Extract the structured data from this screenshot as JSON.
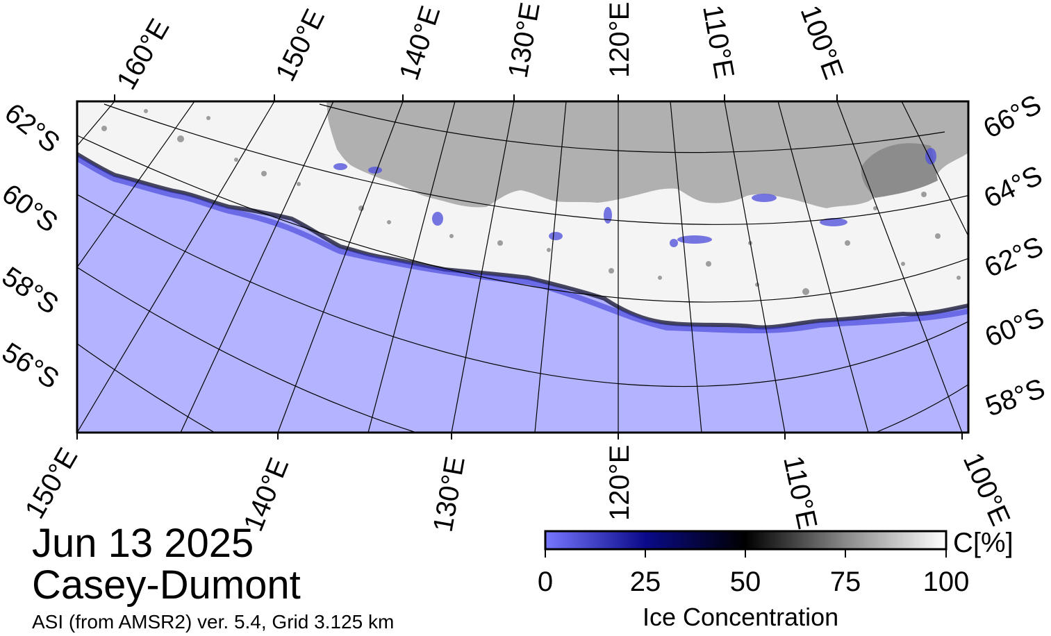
{
  "date": "Jun 13 2025",
  "region": "Casey-Dumont",
  "product": "ASI (from AMSR2) ver. 5.4,  Grid 3.125 km",
  "colorbar": {
    "title": "Ice Concentration",
    "unit": "C[%]",
    "ticks": [
      "0",
      "25",
      "50",
      "75",
      "100"
    ]
  },
  "map_labels": {
    "top_longitudes": [
      "160°E",
      "150°E",
      "140°E",
      "130°E",
      "120°E",
      "110°E",
      "100°E"
    ],
    "bottom_longitudes": [
      "150°E",
      "140°E",
      "130°E",
      "120°E",
      "110°E",
      "100°E"
    ],
    "left_latitudes": [
      "62°S",
      "60°S",
      "58°S",
      "56°S"
    ],
    "right_latitudes": [
      "66°S",
      "64°S",
      "62°S",
      "60°S",
      "58°S"
    ]
  },
  "colors": {
    "ocean": "#b3b3ff",
    "land": "#b0b0b0",
    "ice_high": "#ffffff",
    "ice_low": "#6e6ef5",
    "ice_mid": "#000000"
  }
}
